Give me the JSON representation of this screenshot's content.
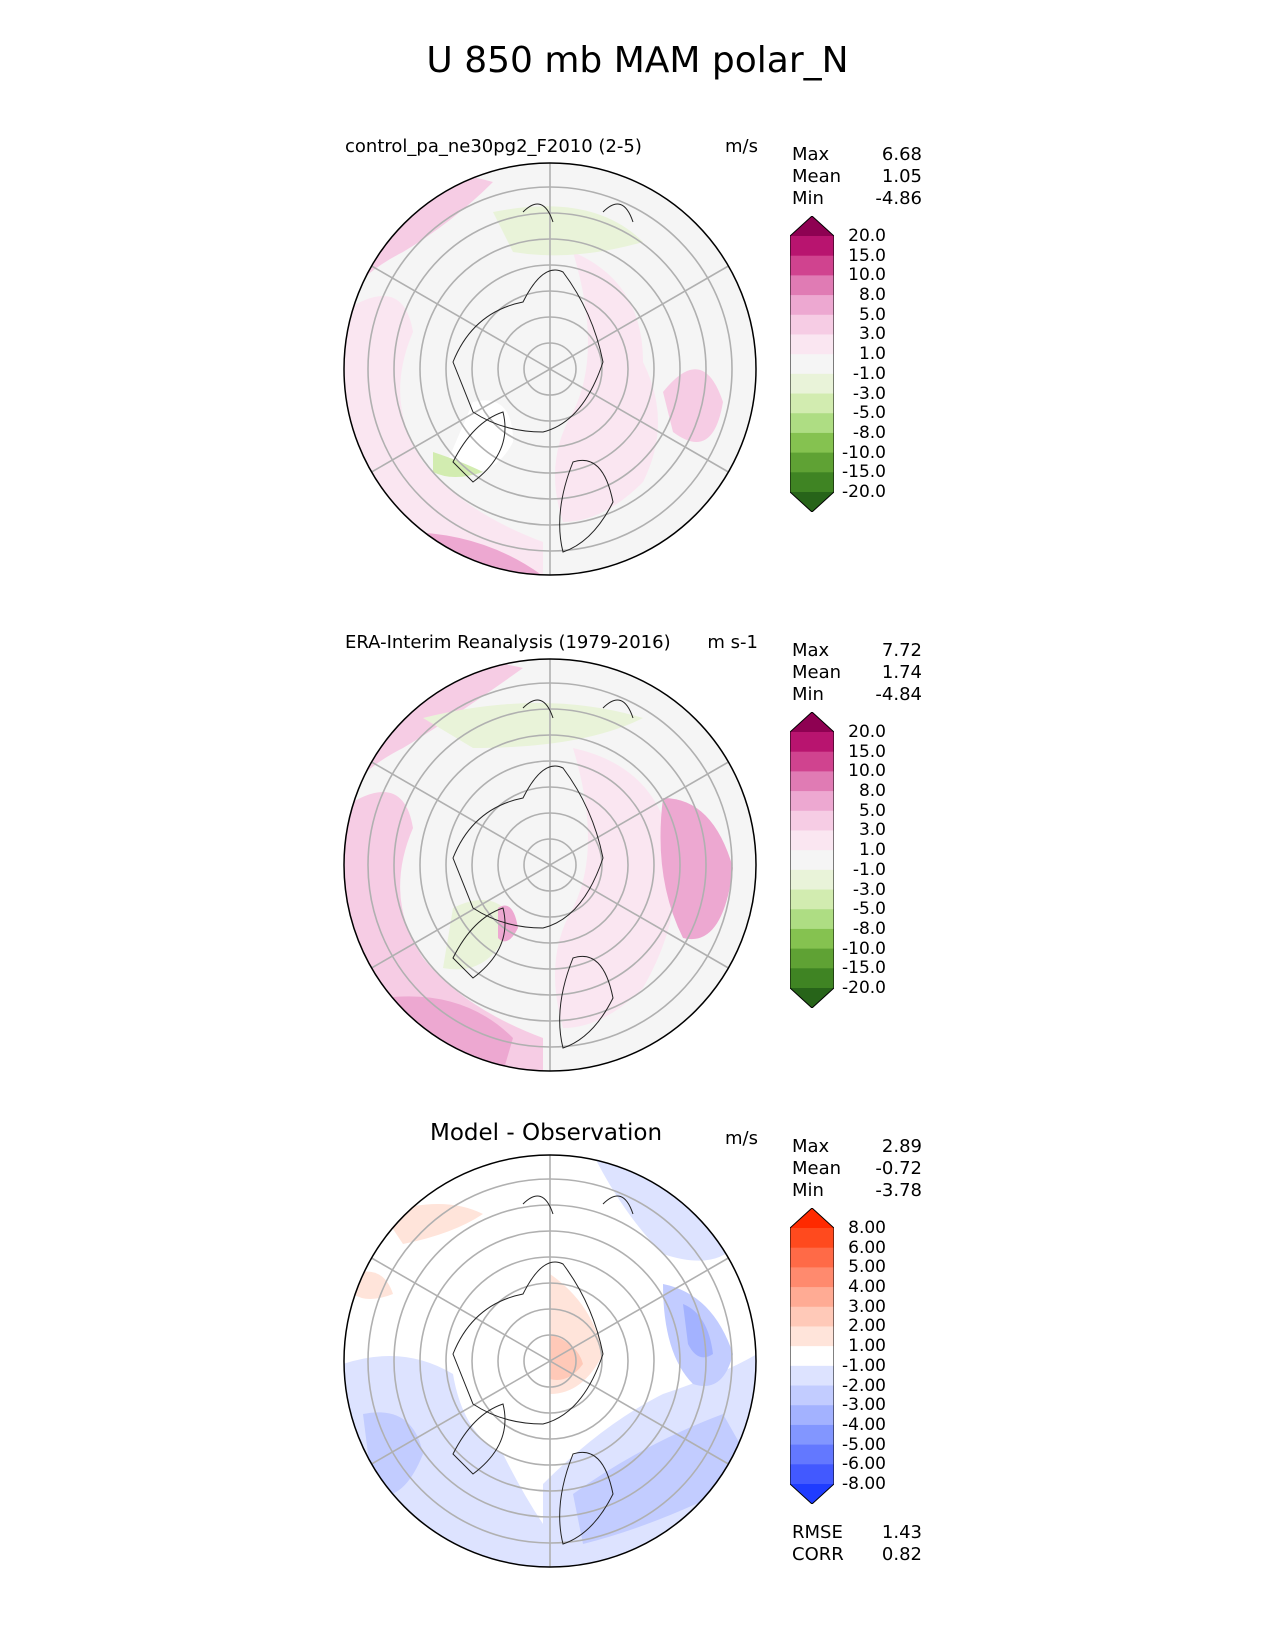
{
  "title": "U 850 mb MAM polar_N",
  "panels": [
    {
      "id": "model",
      "title": "control_pa_ne30pg2_F2010 (2-5)",
      "units": "m/s",
      "stats": [
        {
          "label": "Max",
          "value": "6.68"
        },
        {
          "label": "Mean",
          "value": "1.05"
        },
        {
          "label": "Min",
          "value": "-4.86"
        }
      ],
      "colorbar": {
        "labels": [
          "20.0",
          "15.0",
          "10.0",
          "8.0",
          "5.0",
          "3.0",
          "1.0",
          "-1.0",
          "-3.0",
          "-5.0",
          "-8.0",
          "-10.0",
          "-15.0",
          "-20.0"
        ],
        "colors": [
          "#8e0152",
          "#b8146f",
          "#d0438f",
          "#e07bb4",
          "#eda8d1",
          "#f6cce4",
          "#fae6f1",
          "#f5f5f5",
          "#e9f3d9",
          "#d2ecb0",
          "#aedd83",
          "#85c250",
          "#5fa234",
          "#3f8423",
          "#276419"
        ]
      }
    },
    {
      "id": "obs",
      "title": "ERA-Interim Reanalysis (1979-2016)",
      "units": "m s-1",
      "stats": [
        {
          "label": "Max",
          "value": "7.72"
        },
        {
          "label": "Mean",
          "value": "1.74"
        },
        {
          "label": "Min",
          "value": "-4.84"
        }
      ],
      "colorbar": {
        "labels": [
          "20.0",
          "15.0",
          "10.0",
          "8.0",
          "5.0",
          "3.0",
          "1.0",
          "-1.0",
          "-3.0",
          "-5.0",
          "-8.0",
          "-10.0",
          "-15.0",
          "-20.0"
        ],
        "colors": [
          "#8e0152",
          "#b8146f",
          "#d0438f",
          "#e07bb4",
          "#eda8d1",
          "#f6cce4",
          "#fae6f1",
          "#f5f5f5",
          "#e9f3d9",
          "#d2ecb0",
          "#aedd83",
          "#85c250",
          "#5fa234",
          "#3f8423",
          "#276419"
        ]
      }
    },
    {
      "id": "diff",
      "title": "Model - Observation",
      "units": "m/s",
      "stats": [
        {
          "label": "Max",
          "value": "2.89"
        },
        {
          "label": "Mean",
          "value": "-0.72"
        },
        {
          "label": "Min",
          "value": "-3.78"
        }
      ],
      "colorbar": {
        "labels": [
          "8.00",
          "6.00",
          "5.00",
          "4.00",
          "3.00",
          "2.00",
          "1.00",
          "-1.00",
          "-2.00",
          "-3.00",
          "-4.00",
          "-5.00",
          "-6.00",
          "-8.00"
        ],
        "colors": [
          "#ff2a00",
          "#ff4a1e",
          "#ff6a47",
          "#ff8a6e",
          "#ffab94",
          "#ffc9b8",
          "#ffe4da",
          "#ffffff",
          "#dde3ff",
          "#c2ccff",
          "#a3b2ff",
          "#8296ff",
          "#6378ff",
          "#4259ff",
          "#1f3cff"
        ]
      }
    }
  ],
  "footer_stats": [
    {
      "label": "RMSE",
      "value": "1.43"
    },
    {
      "label": "CORR",
      "value": "0.82"
    }
  ]
}
